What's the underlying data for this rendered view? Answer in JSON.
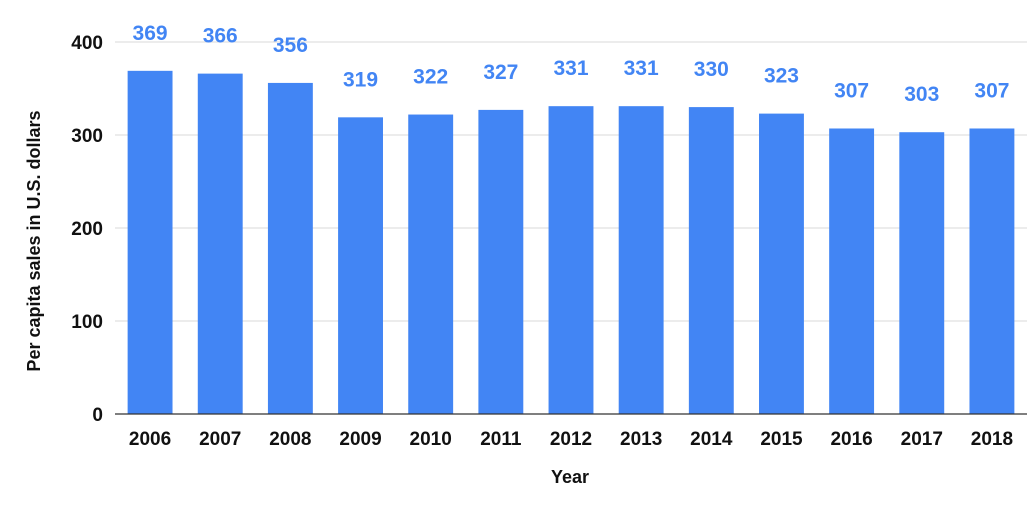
{
  "chart_data": {
    "type": "bar",
    "title": "",
    "xlabel": "Year",
    "ylabel": "Per capita sales in U.S. dollars",
    "categories": [
      "2006",
      "2007",
      "2008",
      "2009",
      "2010",
      "2011",
      "2012",
      "2013",
      "2014",
      "2015",
      "2016",
      "2017",
      "2018"
    ],
    "values": [
      369,
      366,
      356,
      319,
      322,
      327,
      331,
      331,
      330,
      323,
      307,
      303,
      307
    ],
    "ylim": [
      0,
      400
    ],
    "yticks": [
      0,
      100,
      200,
      300,
      400
    ],
    "grid": true,
    "legend": "none",
    "bar_color": "#4285f4",
    "label_color": "#4285f4"
  }
}
